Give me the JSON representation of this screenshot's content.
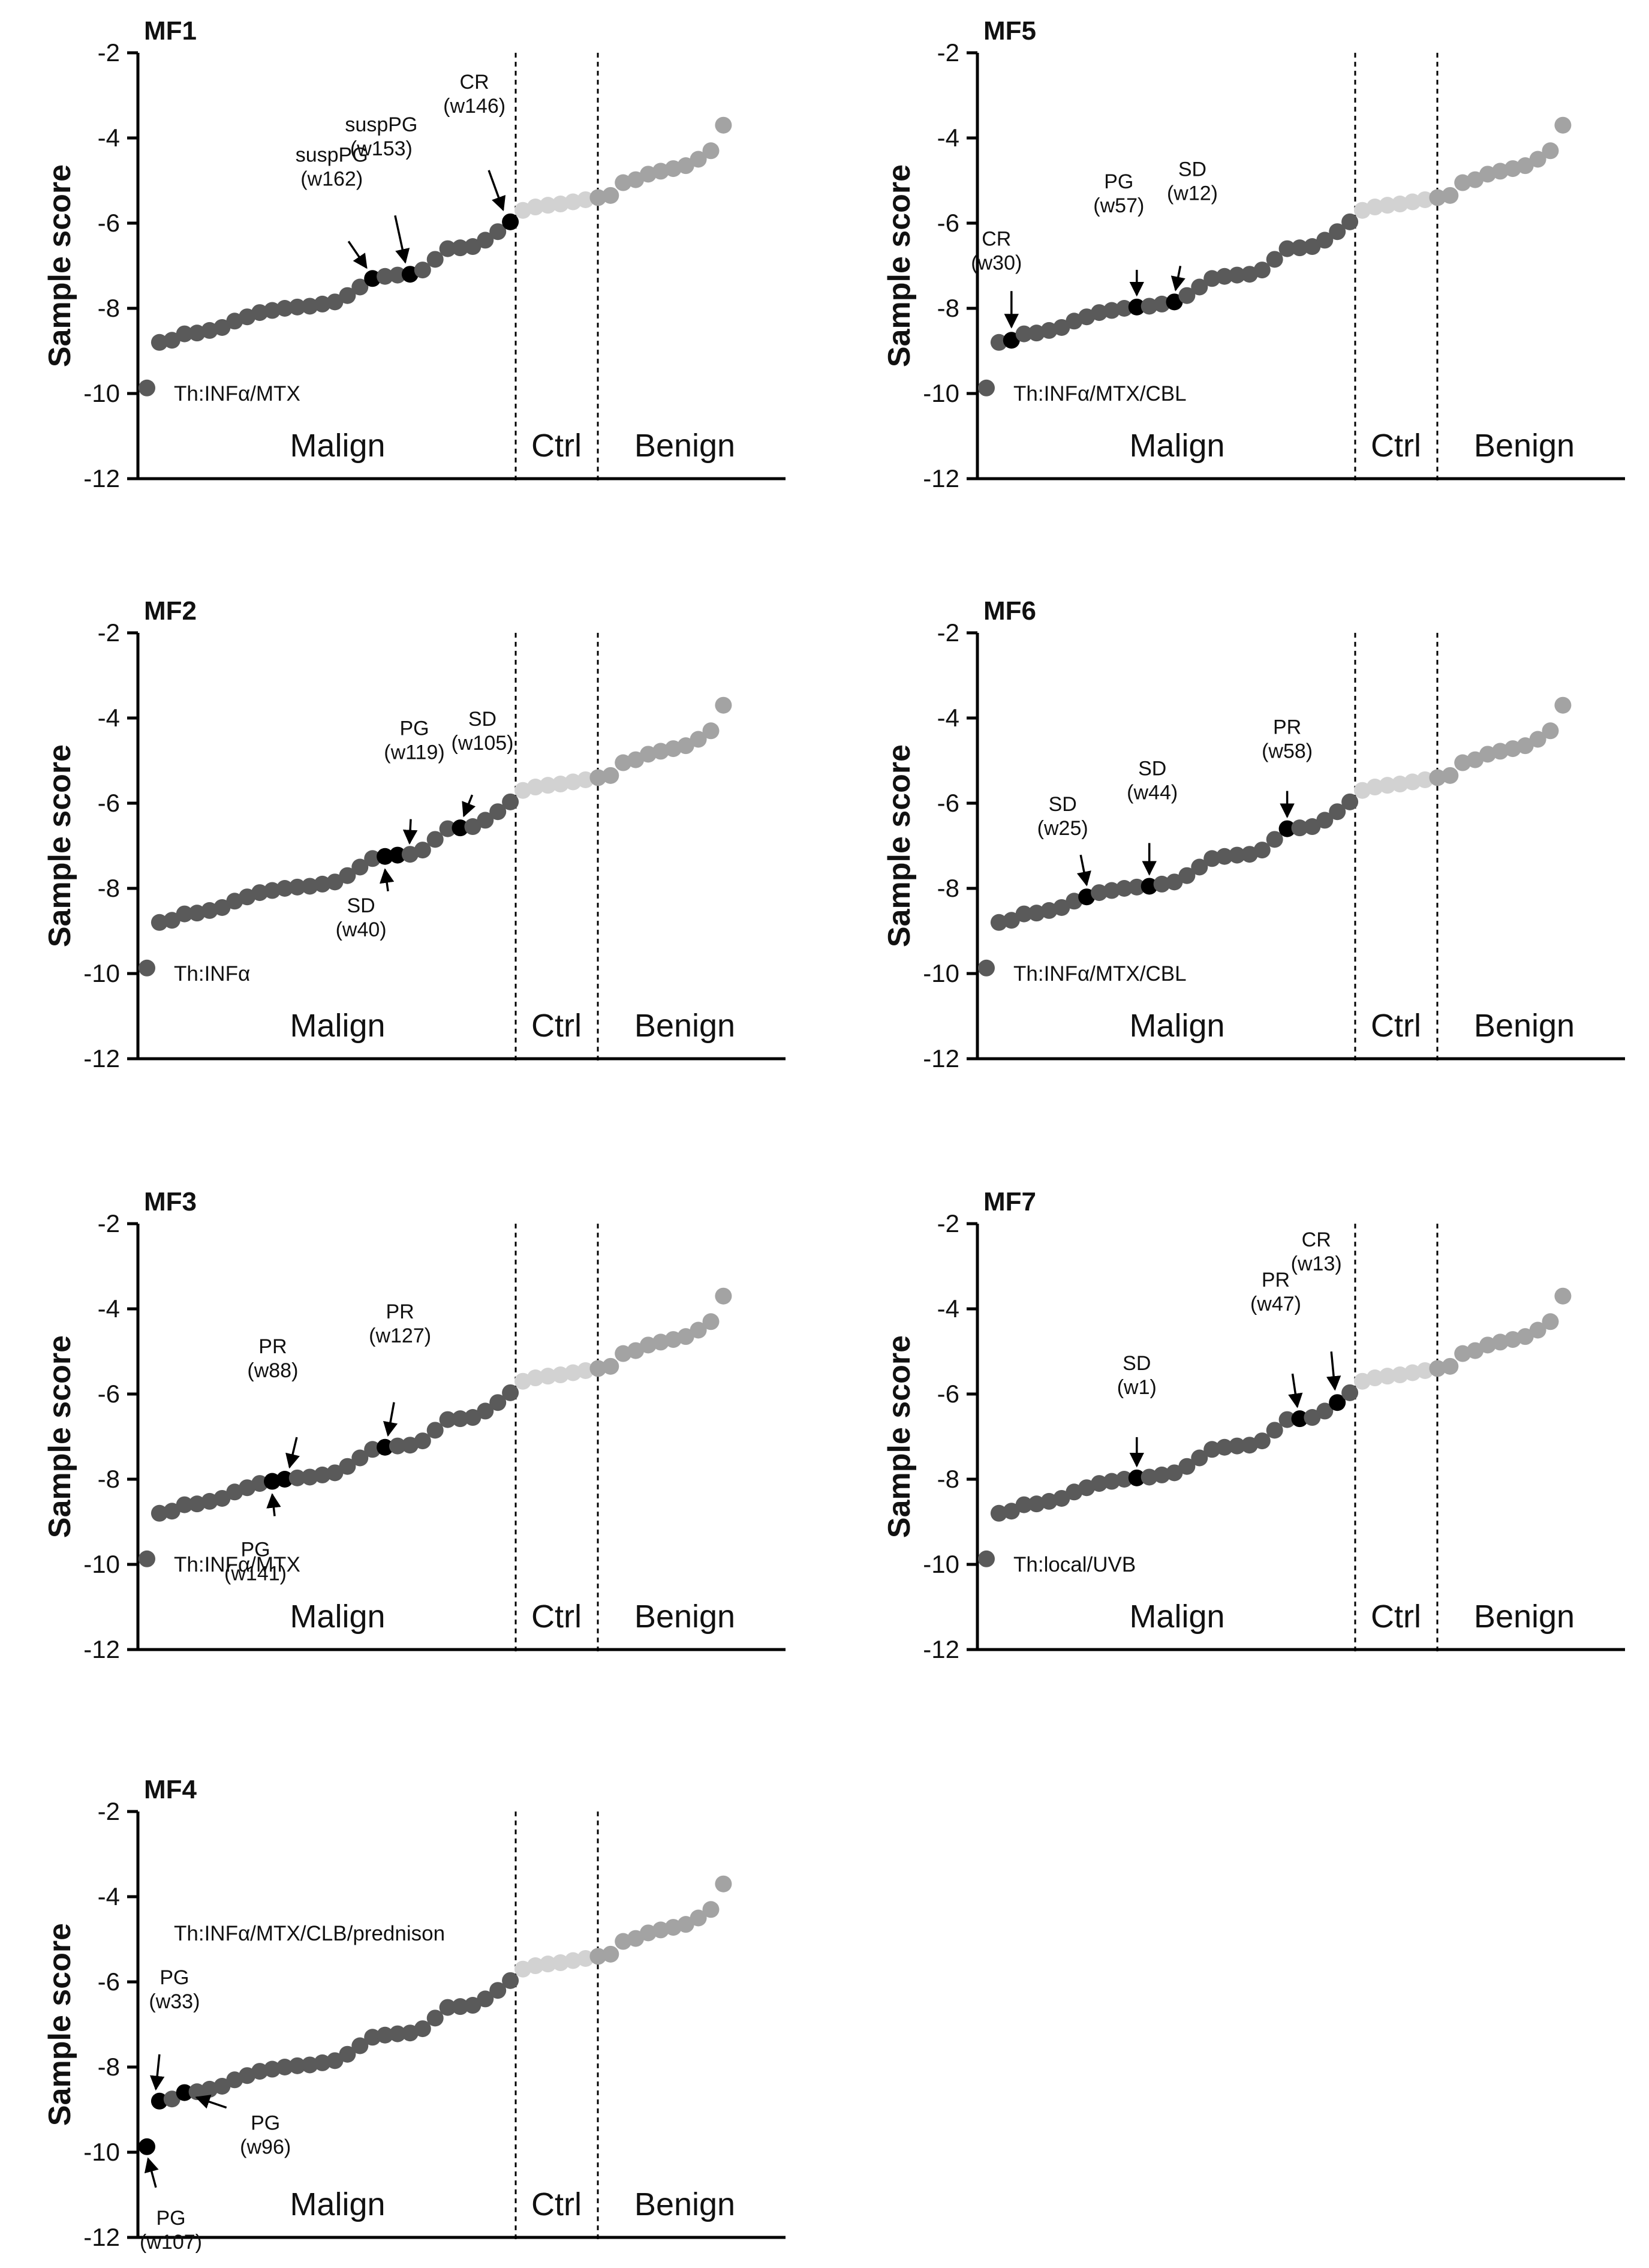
{
  "figure": {
    "shared": {
      "y_axis_label": "Sample score",
      "y_ticks": [
        -2,
        -4,
        -6,
        -8,
        -10,
        -12
      ],
      "ylim": [
        -12,
        -2
      ],
      "group_labels": [
        "Malign",
        "Ctrl",
        "Benign"
      ],
      "background_scores": {
        "malign": [
          -9.87,
          -8.8,
          -8.75,
          -8.6,
          -8.58,
          -8.52,
          -8.45,
          -8.3,
          -8.2,
          -8.1,
          -8.05,
          -8.0,
          -7.97,
          -7.95,
          -7.9,
          -7.85,
          -7.7,
          -7.5,
          -7.3,
          -7.25,
          -7.22,
          -7.2,
          -7.1,
          -6.85,
          -6.6,
          -6.58,
          -6.55,
          -6.4,
          -6.2,
          -5.97
        ],
        "ctrl": [
          -5.7,
          -5.62,
          -5.58,
          -5.55,
          -5.5,
          -5.45
        ],
        "benign": [
          -5.4,
          -5.35,
          -5.05,
          -4.98,
          -4.85,
          -4.78,
          -4.72,
          -4.65,
          -4.5,
          -4.3,
          -3.7
        ]
      },
      "colors": {
        "malign": "#5a5a5a",
        "ctrl": "#d2d2d2",
        "benign": "#a3a3a3",
        "highlight": "#000000"
      }
    },
    "panels": [
      {
        "title": "MF1",
        "therapy": "Th:INFα/MTX",
        "highlights": [
          {
            "index": 18,
            "label": "suspPG",
            "week": "(w162)"
          },
          {
            "index": 21,
            "label": "suspPG",
            "week": "(w153)"
          },
          {
            "index": 29,
            "label": "CR",
            "week": "(w146)"
          }
        ]
      },
      {
        "title": "MF5",
        "therapy": "Th:INFα/MTX/CBL",
        "highlights": [
          {
            "index": 2,
            "label": "CR",
            "week": "(w30)"
          },
          {
            "index": 12,
            "label": "PG",
            "week": "(w57)"
          },
          {
            "index": 15,
            "label": "SD",
            "week": "(w12)"
          }
        ]
      },
      {
        "title": "MF2",
        "therapy": "Th:INFα",
        "highlights": [
          {
            "index": 19,
            "label": "SD",
            "week": "(w40)"
          },
          {
            "index": 20,
            "label": "PG",
            "week": "(w119)"
          },
          {
            "index": 25,
            "label": "SD",
            "week": "(w105)"
          }
        ]
      },
      {
        "title": "MF6",
        "therapy": "Th:INFα/MTX/CBL",
        "highlights": [
          {
            "index": 8,
            "label": "SD",
            "week": "(w25)"
          },
          {
            "index": 13,
            "label": "SD",
            "week": "(w44)"
          },
          {
            "index": 24,
            "label": "PR",
            "week": "(w58)"
          }
        ]
      },
      {
        "title": "MF3",
        "therapy": "Th:INFα/MTX",
        "highlights": [
          {
            "index": 10,
            "label": "PG",
            "week": "(w141)"
          },
          {
            "index": 11,
            "label": "PR",
            "week": "(w88)"
          },
          {
            "index": 19,
            "label": "PR",
            "week": "(w127)"
          }
        ]
      },
      {
        "title": "MF7",
        "therapy": "Th:local/UVB",
        "highlights": [
          {
            "index": 12,
            "label": "SD",
            "week": "(w1)"
          },
          {
            "index": 25,
            "label": "PR",
            "week": "(w47)"
          },
          {
            "index": 28,
            "label": "CR",
            "week": "(w13)"
          }
        ]
      },
      {
        "title": "MF4",
        "therapy": "Th:INFα/MTX/CLB/prednison",
        "highlights": [
          {
            "index": 0,
            "label": "PG",
            "week": "(w107)"
          },
          {
            "index": 1,
            "label": "PG",
            "week": "(w33)"
          },
          {
            "index": 3,
            "label": "PG",
            "week": "(w96)"
          }
        ]
      }
    ]
  },
  "chart_data": [
    {
      "type": "scatter",
      "title": "MF1",
      "ylabel": "Sample score",
      "ylim": [
        -12,
        -2
      ],
      "categories": [
        "Malign",
        "Ctrl",
        "Benign"
      ],
      "annotation": "Th:INFα/MTX"
    },
    {
      "type": "scatter",
      "title": "MF5",
      "ylabel": "Sample score",
      "ylim": [
        -12,
        -2
      ],
      "categories": [
        "Malign",
        "Ctrl",
        "Benign"
      ],
      "annotation": "Th:INFα/MTX/CBL"
    },
    {
      "type": "scatter",
      "title": "MF2",
      "ylabel": "Sample score",
      "ylim": [
        -12,
        -2
      ],
      "categories": [
        "Malign",
        "Ctrl",
        "Benign"
      ],
      "annotation": "Th:INFα"
    },
    {
      "type": "scatter",
      "title": "MF6",
      "ylabel": "Sample score",
      "ylim": [
        -12,
        -2
      ],
      "categories": [
        "Malign",
        "Ctrl",
        "Benign"
      ],
      "annotation": "Th:INFα/MTX/CBL"
    },
    {
      "type": "scatter",
      "title": "MF3",
      "ylabel": "Sample score",
      "ylim": [
        -12,
        -2
      ],
      "categories": [
        "Malign",
        "Ctrl",
        "Benign"
      ],
      "annotation": "Th:INFα/MTX"
    },
    {
      "type": "scatter",
      "title": "MF7",
      "ylabel": "Sample score",
      "ylim": [
        -12,
        -2
      ],
      "categories": [
        "Malign",
        "Ctrl",
        "Benign"
      ],
      "annotation": "Th:local/UVB"
    },
    {
      "type": "scatter",
      "title": "MF4",
      "ylabel": "Sample score",
      "ylim": [
        -12,
        -2
      ],
      "categories": [
        "Malign",
        "Ctrl",
        "Benign"
      ],
      "annotation": "Th:INFα/MTX/CLB/prednison"
    }
  ]
}
